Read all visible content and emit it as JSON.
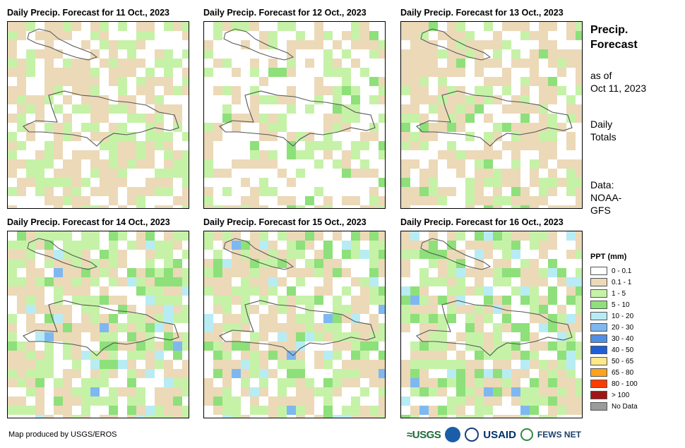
{
  "panels": [
    {
      "title": "Daily Precip. Forecast for 11 Oct., 2023",
      "pattern": "p11"
    },
    {
      "title": "Daily Precip. Forecast for 12 Oct., 2023",
      "pattern": "p12"
    },
    {
      "title": "Daily Precip. Forecast for 13 Oct., 2023",
      "pattern": "p13"
    },
    {
      "title": "Daily Precip. Forecast for 14 Oct., 2023",
      "pattern": "p14"
    },
    {
      "title": "Daily Precip. Forecast for 15 Oct., 2023",
      "pattern": "p15"
    },
    {
      "title": "Daily Precip. Forecast for 16 Oct., 2023",
      "pattern": "p16"
    }
  ],
  "side": {
    "title_line1": "Precip.",
    "title_line2": "Forecast",
    "asof_line1": "as of",
    "asof_line2": "Oct 11, 2023",
    "daily_line1": "Daily",
    "daily_line2": "Totals",
    "data_line1": "Data:",
    "data_line2": "NOAA-",
    "data_line3": "GFS"
  },
  "legend": {
    "title": "PPT (mm)",
    "items": [
      {
        "label": "0 - 0.1",
        "color": "#ffffff"
      },
      {
        "label": "0.1 - 1",
        "color": "#ecd9b8"
      },
      {
        "label": "1 - 5",
        "color": "#c6f2a8"
      },
      {
        "label": "5 - 10",
        "color": "#8ee07a"
      },
      {
        "label": "10 - 20",
        "color": "#b8ecf4"
      },
      {
        "label": "20 - 30",
        "color": "#7fb8f0"
      },
      {
        "label": "30 - 40",
        "color": "#4f8fe6"
      },
      {
        "label": "40 - 50",
        "color": "#1f5fd6"
      },
      {
        "label": "50 - 65",
        "color": "#fde88a"
      },
      {
        "label": "65 - 80",
        "color": "#ffa31a"
      },
      {
        "label": "80 - 100",
        "color": "#ff3c00"
      },
      {
        "label": "> 100",
        "color": "#a01515"
      },
      {
        "label": "No Data",
        "color": "#9b9b9b"
      }
    ]
  },
  "footer": {
    "credit": "Map produced by USGS/EROS",
    "logo_usgs": "≈USGS",
    "logo_usaid": "USAID",
    "logo_fews": "FEWS NET"
  }
}
